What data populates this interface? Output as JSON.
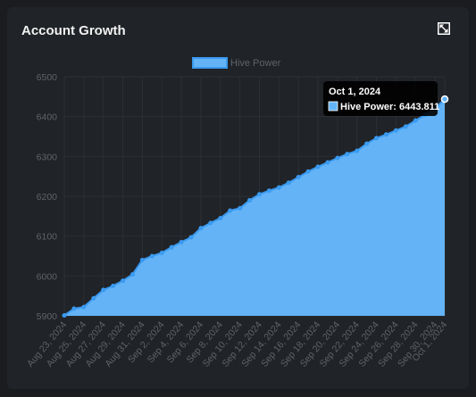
{
  "card": {
    "title": "Account Growth",
    "expand_icon": "expand-icon"
  },
  "colors": {
    "background": "#1a1c1f",
    "card": "#202327",
    "fill": "#63b3f6",
    "line": "#3a9af0",
    "grid": "#2c2f33",
    "tick": "#5f6368"
  },
  "chart_data": {
    "type": "area",
    "series": [
      {
        "name": "Hive Power",
        "x": [
          "Aug 23, 2024",
          "Aug 24, 2024",
          "Aug 25, 2024",
          "Aug 26, 2024",
          "Aug 27, 2024",
          "Aug 28, 2024",
          "Aug 29, 2024",
          "Aug 30, 2024",
          "Aug 31, 2024",
          "Sep 1, 2024",
          "Sep 2, 2024",
          "Sep 3, 2024",
          "Sep 4, 2024",
          "Sep 5, 2024",
          "Sep 6, 2024",
          "Sep 7, 2024",
          "Sep 8, 2024",
          "Sep 9, 2024",
          "Sep 10, 2024",
          "Sep 11, 2024",
          "Sep 12, 2024",
          "Sep 13, 2024",
          "Sep 14, 2024",
          "Sep 15, 2024",
          "Sep 16, 2024",
          "Sep 17, 2024",
          "Sep 18, 2024",
          "Sep 19, 2024",
          "Sep 20, 2024",
          "Sep 21, 2024",
          "Sep 22, 2024",
          "Sep 23, 2024",
          "Sep 24, 2024",
          "Sep 25, 2024",
          "Sep 26, 2024",
          "Sep 27, 2024",
          "Sep 28, 2024",
          "Sep 29, 2024",
          "Sep 30, 2024",
          "Oct 1, 2024"
        ],
        "values": [
          5901,
          5918,
          5922,
          5944,
          5965,
          5975,
          5988,
          6004,
          6040,
          6050,
          6058,
          6072,
          6085,
          6097,
          6120,
          6133,
          6145,
          6164,
          6170,
          6190,
          6205,
          6214,
          6222,
          6234,
          6248,
          6262,
          6274,
          6285,
          6296,
          6306,
          6314,
          6332,
          6346,
          6355,
          6365,
          6375,
          6390,
          6405,
          6420,
          6443.811
        ]
      }
    ],
    "x_tick_labels": [
      "Aug 23, 2024",
      "Aug 25, 2024",
      "Aug 27, 2024",
      "Aug 29, 2024",
      "Aug 31, 2024",
      "Sep 2, 2024",
      "Sep 4, 2024",
      "Sep 6, 2024",
      "Sep 8, 2024",
      "Sep 10, 2024",
      "Sep 12, 2024",
      "Sep 14, 2024",
      "Sep 16, 2024",
      "Sep 18, 2024",
      "Sep 20, 2024",
      "Sep 22, 2024",
      "Sep 24, 2024",
      "Sep 26, 2024",
      "Sep 28, 2024",
      "Sep 30, 2024",
      "Oct 1, 2024"
    ],
    "y_ticks": [
      "5900",
      "6000",
      "6100",
      "6200",
      "6300",
      "6400",
      "6500"
    ],
    "ylim": [
      5900,
      6500
    ],
    "grid": true,
    "legend": "top-center",
    "tooltip": {
      "title": "Oct 1, 2024",
      "label": "Hive Power: 6443.811"
    }
  }
}
